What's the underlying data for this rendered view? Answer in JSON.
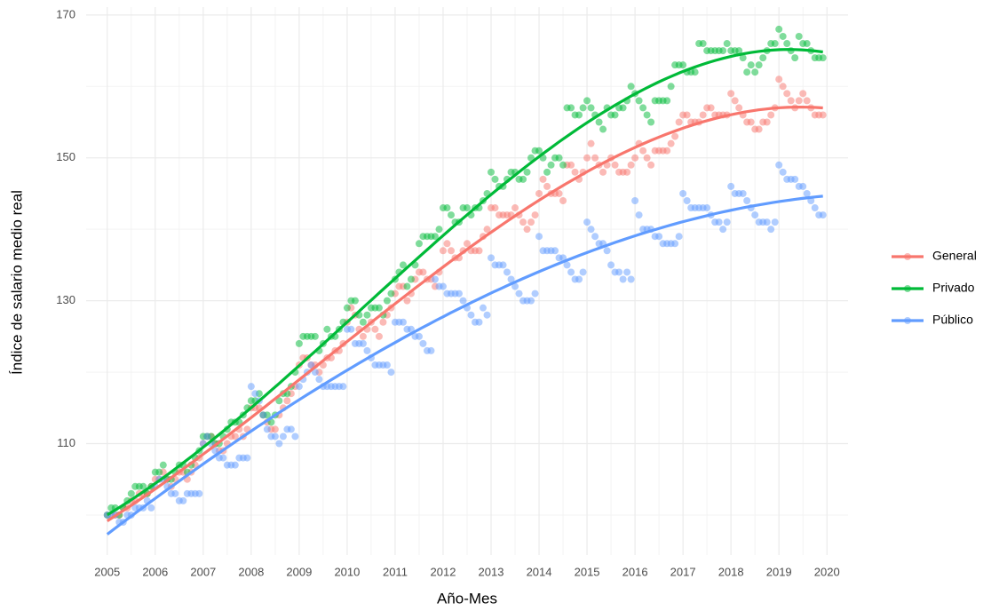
{
  "chart_data": {
    "type": "scatter",
    "xlabel": "Año-Mes",
    "ylabel": "Índice de salario medio real",
    "smooth": true,
    "grid": true,
    "legend": "right",
    "xlim": [
      2004.56,
      2020.44
    ],
    "xticks": [
      2005,
      2006,
      2007,
      2008,
      2009,
      2010,
      2011,
      2012,
      2013,
      2014,
      2015,
      2016,
      2017,
      2018,
      2019,
      2020
    ],
    "ylim": [
      94.4,
      171.1
    ],
    "yticks": [
      110,
      130,
      150,
      170
    ],
    "x": [
      2005,
      2005.083,
      2005.167,
      2005.25,
      2005.333,
      2005.417,
      2005.5,
      2005.583,
      2005.667,
      2005.75,
      2005.833,
      2005.917,
      2006,
      2006.083,
      2006.167,
      2006.25,
      2006.333,
      2006.417,
      2006.5,
      2006.583,
      2006.667,
      2006.75,
      2006.833,
      2006.917,
      2007,
      2007.083,
      2007.167,
      2007.25,
      2007.333,
      2007.417,
      2007.5,
      2007.583,
      2007.667,
      2007.75,
      2007.833,
      2007.917,
      2008,
      2008.083,
      2008.167,
      2008.25,
      2008.333,
      2008.417,
      2008.5,
      2008.583,
      2008.667,
      2008.75,
      2008.833,
      2008.917,
      2009,
      2009.083,
      2009.167,
      2009.25,
      2009.333,
      2009.417,
      2009.5,
      2009.583,
      2009.667,
      2009.75,
      2009.833,
      2009.917,
      2010,
      2010.083,
      2010.167,
      2010.25,
      2010.333,
      2010.417,
      2010.5,
      2010.583,
      2010.667,
      2010.75,
      2010.833,
      2010.917,
      2011,
      2011.083,
      2011.167,
      2011.25,
      2011.333,
      2011.417,
      2011.5,
      2011.583,
      2011.667,
      2011.75,
      2011.833,
      2011.917,
      2012,
      2012.083,
      2012.167,
      2012.25,
      2012.333,
      2012.417,
      2012.5,
      2012.583,
      2012.667,
      2012.75,
      2012.833,
      2012.917,
      2013,
      2013.083,
      2013.167,
      2013.25,
      2013.333,
      2013.417,
      2013.5,
      2013.583,
      2013.667,
      2013.75,
      2013.833,
      2013.917,
      2014,
      2014.083,
      2014.167,
      2014.25,
      2014.333,
      2014.417,
      2014.5,
      2014.583,
      2014.667,
      2014.75,
      2014.833,
      2014.917,
      2015,
      2015.083,
      2015.167,
      2015.25,
      2015.333,
      2015.417,
      2015.5,
      2015.583,
      2015.667,
      2015.75,
      2015.833,
      2015.917,
      2016,
      2016.083,
      2016.167,
      2016.25,
      2016.333,
      2016.417,
      2016.5,
      2016.583,
      2016.667,
      2016.75,
      2016.833,
      2016.917,
      2017,
      2017.083,
      2017.167,
      2017.25,
      2017.333,
      2017.417,
      2017.5,
      2017.583,
      2017.667,
      2017.75,
      2017.833,
      2017.917,
      2018,
      2018.083,
      2018.167,
      2018.25,
      2018.333,
      2018.417,
      2018.5,
      2018.583,
      2018.667,
      2018.75,
      2018.833,
      2018.917,
      2019,
      2019.083,
      2019.167,
      2019.25,
      2019.333,
      2019.417,
      2019.5,
      2019.583,
      2019.667,
      2019.75,
      2019.833,
      2019.917
    ],
    "series": [
      {
        "name": "General",
        "color": "#F8766D",
        "values": [
          100,
          100,
          100,
          100,
          101,
          101,
          102,
          102,
          103,
          103,
          103,
          104,
          105,
          105,
          106,
          105,
          104,
          105,
          106,
          106,
          105,
          106,
          107,
          108,
          110,
          111,
          111,
          110,
          109,
          109,
          110,
          111,
          111,
          112,
          111,
          112,
          115,
          115,
          115,
          114,
          113,
          112,
          112,
          114,
          115,
          116,
          117,
          118,
          121,
          122,
          122,
          121,
          121,
          120,
          121,
          122,
          122,
          123,
          123,
          124,
          127,
          129,
          128,
          126,
          125,
          126,
          127,
          126,
          125,
          127,
          128,
          129,
          131,
          132,
          132,
          130,
          131,
          133,
          134,
          134,
          133,
          133,
          132,
          134,
          137,
          138,
          137,
          136,
          136,
          137,
          138,
          137,
          137,
          137,
          139,
          140,
          143,
          143,
          142,
          142,
          142,
          142,
          143,
          142,
          141,
          140,
          141,
          142,
          145,
          147,
          146,
          145,
          145,
          145,
          144,
          149,
          149,
          148,
          147,
          148,
          150,
          152,
          150,
          149,
          148,
          149,
          150,
          149,
          148,
          148,
          148,
          149,
          150,
          152,
          151,
          150,
          149,
          151,
          151,
          151,
          151,
          152,
          153,
          155,
          156,
          156,
          155,
          155,
          155,
          156,
          157,
          157,
          156,
          156,
          156,
          156,
          159,
          158,
          157,
          156,
          155,
          155,
          154,
          154,
          155,
          155,
          156,
          157,
          161,
          160,
          159,
          158,
          157,
          158,
          159,
          158,
          157,
          156,
          156,
          156
        ]
      },
      {
        "name": "Privado",
        "color": "#00BA38",
        "values": [
          100,
          101,
          101,
          100,
          101,
          102,
          103,
          104,
          104,
          104,
          103,
          104,
          106,
          106,
          107,
          105,
          105,
          106,
          107,
          107,
          106,
          107,
          108,
          109,
          111,
          111,
          111,
          110,
          110,
          111,
          112,
          113,
          113,
          113,
          114,
          115,
          116,
          116,
          117,
          114,
          114,
          113,
          114,
          116,
          117,
          117,
          118,
          120,
          124,
          125,
          125,
          125,
          125,
          123,
          124,
          126,
          125,
          125,
          126,
          127,
          129,
          130,
          130,
          128,
          127,
          128,
          129,
          129,
          129,
          128,
          130,
          131,
          133,
          134,
          135,
          132,
          133,
          135,
          138,
          139,
          139,
          139,
          139,
          140,
          143,
          143,
          142,
          141,
          141,
          143,
          143,
          142,
          143,
          143,
          144,
          145,
          148,
          147,
          146,
          146,
          147,
          148,
          148,
          147,
          147,
          148,
          150,
          151,
          151,
          150,
          148,
          149,
          150,
          150,
          149,
          157,
          157,
          156,
          156,
          157,
          158,
          157,
          156,
          155,
          154,
          157,
          156,
          156,
          157,
          157,
          158,
          160,
          159,
          158,
          157,
          156,
          155,
          158,
          158,
          158,
          158,
          160,
          163,
          163,
          163,
          162,
          162,
          162,
          166,
          166,
          165,
          165,
          165,
          165,
          165,
          166,
          165,
          165,
          165,
          164,
          162,
          163,
          162,
          163,
          164,
          165,
          166,
          166,
          168,
          167,
          166,
          165,
          164,
          167,
          166,
          166,
          165,
          164,
          164,
          164
        ]
      },
      {
        "name": "Público",
        "color": "#619CFF",
        "values": [
          100,
          100,
          100,
          99,
          99,
          100,
          100,
          101,
          101,
          101,
          102,
          101,
          104,
          105,
          105,
          104,
          103,
          103,
          102,
          102,
          103,
          103,
          103,
          103,
          110,
          111,
          110,
          109,
          108,
          108,
          107,
          107,
          107,
          108,
          108,
          108,
          118,
          117,
          116,
          114,
          112,
          111,
          111,
          110,
          111,
          112,
          112,
          111,
          118,
          119,
          120,
          121,
          120,
          119,
          118,
          118,
          118,
          118,
          118,
          118,
          126,
          126,
          124,
          124,
          124,
          123,
          122,
          121,
          121,
          121,
          121,
          120,
          127,
          127,
          127,
          126,
          126,
          125,
          125,
          124,
          123,
          123,
          133,
          132,
          132,
          131,
          131,
          131,
          131,
          130,
          129,
          128,
          127,
          127,
          129,
          128,
          136,
          135,
          135,
          135,
          134,
          133,
          132,
          131,
          130,
          130,
          130,
          131,
          139,
          137,
          137,
          137,
          137,
          136,
          136,
          135,
          134,
          133,
          133,
          134,
          141,
          140,
          139,
          138,
          138,
          137,
          135,
          134,
          134,
          133,
          134,
          133,
          144,
          142,
          140,
          140,
          140,
          139,
          139,
          138,
          138,
          138,
          138,
          139,
          145,
          144,
          143,
          143,
          143,
          143,
          143,
          142,
          141,
          141,
          140,
          141,
          146,
          145,
          145,
          145,
          144,
          143,
          142,
          141,
          141,
          141,
          140,
          141,
          149,
          148,
          147,
          147,
          147,
          146,
          146,
          145,
          144,
          143,
          142,
          142
        ]
      }
    ]
  }
}
